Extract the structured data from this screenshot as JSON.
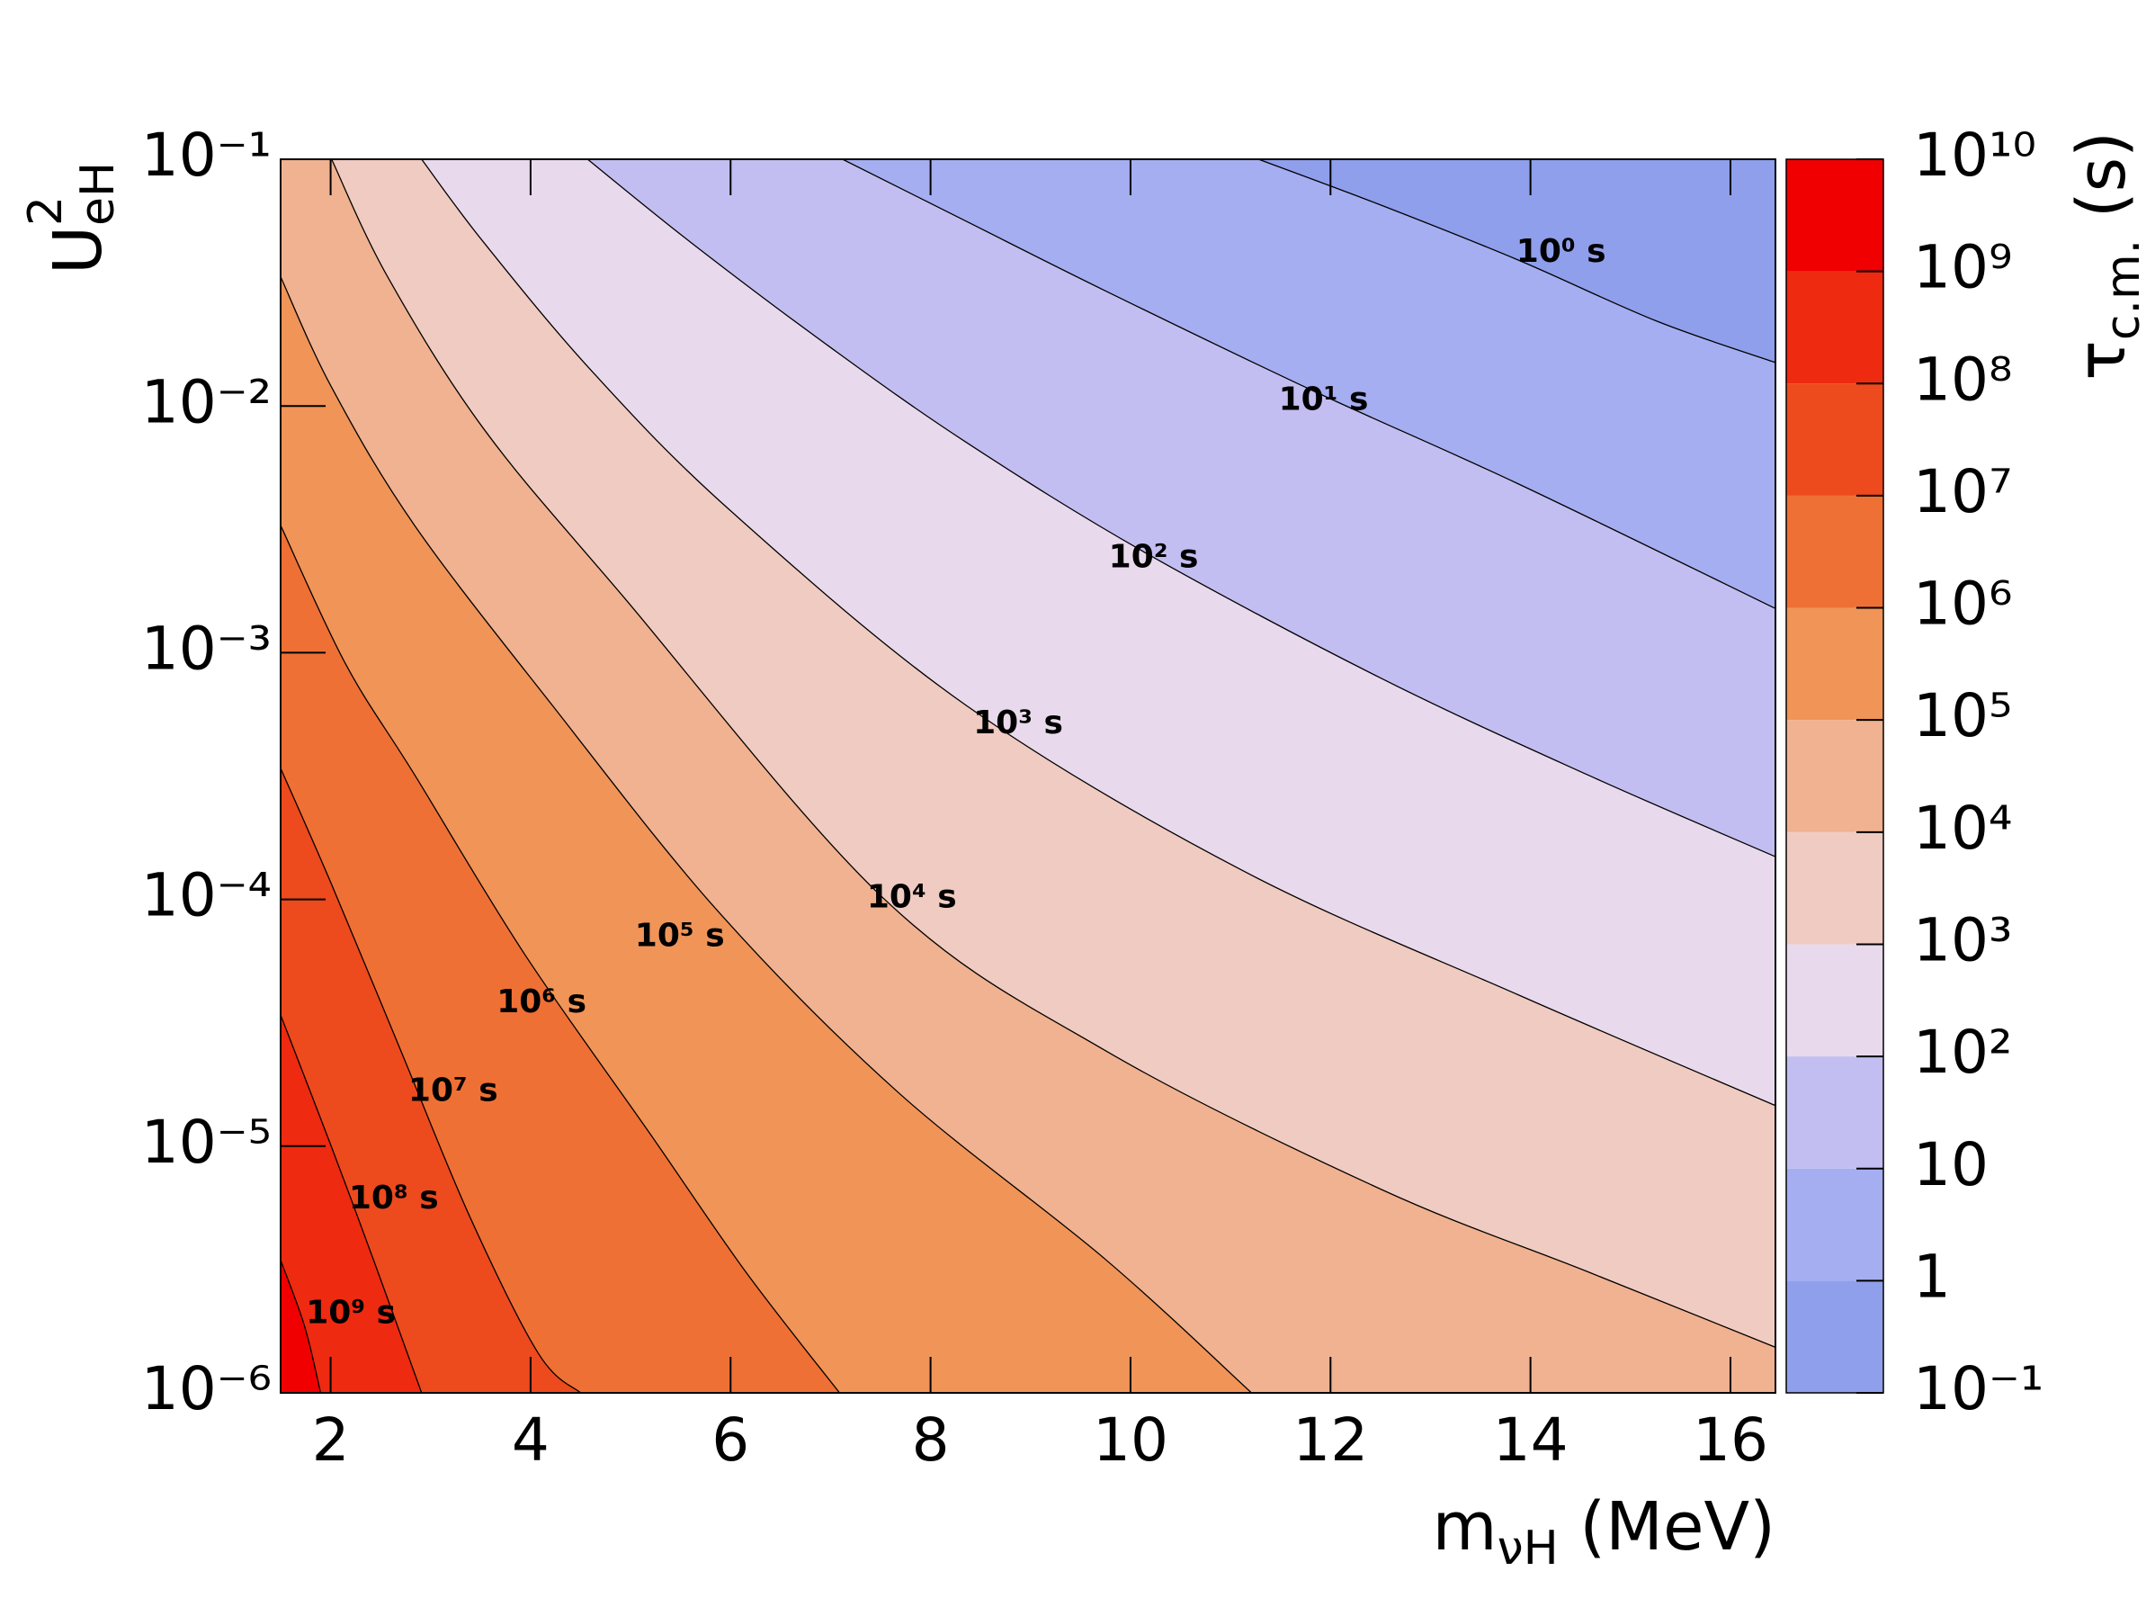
{
  "chart_data": {
    "type": "contour",
    "xlabel": {
      "main": "m",
      "sub": "νH",
      "rest": " (MeV)"
    },
    "ylabel": {
      "main": "U",
      "sup": "2",
      "sub": "eH"
    },
    "zlabel": {
      "main": "τ",
      "sub": "c.m.",
      "rest": " (s)"
    },
    "xlim": [
      1.5,
      16.45
    ],
    "xticks": [
      2,
      4,
      6,
      8,
      10,
      12,
      14,
      16
    ],
    "ylim": [
      1e-06,
      0.1
    ],
    "ylog": true,
    "yticks": [
      {
        "value": 1e-06,
        "label": "10⁻⁶"
      },
      {
        "value": 1e-05,
        "label": "10⁻⁵"
      },
      {
        "value": 0.0001,
        "label": "10⁻⁴"
      },
      {
        "value": 0.001,
        "label": "10⁻³"
      },
      {
        "value": 0.01,
        "label": "10⁻²"
      },
      {
        "value": 0.1,
        "label": "10⁻¹"
      }
    ],
    "zlim": [
      0.1,
      10000000000
    ],
    "zlog": true,
    "zticks": [
      {
        "value": 0.1,
        "label": "10⁻¹"
      },
      1,
      10,
      {
        "value": 100,
        "label": "10²"
      },
      {
        "value": 1000,
        "label": "10³"
      },
      {
        "value": 10000,
        "label": "10⁴"
      },
      {
        "value": 100000,
        "label": "10⁵"
      },
      {
        "value": 1000000,
        "label": "10⁶"
      },
      {
        "value": 10000000,
        "label": "10⁷"
      },
      {
        "value": 100000000,
        "label": "10⁸"
      },
      {
        "value": 1000000000,
        "label": "10⁹"
      },
      {
        "value": 10000000000,
        "label": "10¹⁰"
      }
    ],
    "colors": [
      "#8f9fec",
      "#a5aef1",
      "#c3bef1",
      "#e8daec",
      "#f0cbc1",
      "#f0b290",
      "#f09458",
      "#ef7034",
      "#ed4a1e",
      "#ee2a10",
      "#f00000"
    ],
    "line_color": "#000000",
    "contours": [
      {
        "name": "10⁰ s",
        "level": 1,
        "x": [
          11.28,
          12.5,
          13.88,
          15.26,
          16.45
        ],
        "y": [
          0.1,
          0.0653,
          0.039,
          0.0221,
          0.015
        ]
      },
      {
        "name": "10¹ s",
        "level": 10,
        "x": [
          7.12,
          8.36,
          9.74,
          11.81,
          13.88,
          16.45
        ],
        "y": [
          0.1,
          0.056,
          0.0294,
          0.0116,
          0.00483,
          0.00151
        ]
      },
      {
        "name": "10² s",
        "level": 100,
        "x": [
          4.57,
          5.6,
          6.98,
          8.36,
          10.15,
          12.5,
          14.57,
          16.45
        ],
        "y": [
          0.1,
          0.0461,
          0.0175,
          0.00711,
          0.00254,
          0.00079,
          0.00032,
          0.000149
        ]
      },
      {
        "name": "10³ s",
        "level": 1000,
        "x": [
          2.91,
          3.53,
          4.63,
          6.01,
          8.36,
          11.12,
          13.88,
          16.45
        ],
        "y": [
          0.1,
          0.0461,
          0.0136,
          0.00373,
          0.00061,
          0.000131,
          4.1e-05,
          1.46e-05
        ]
      },
      {
        "name": "10⁴ s",
        "level": 10000,
        "x": [
          2.01,
          2.57,
          3.53,
          4.91,
          7.53,
          9.74,
          12.5,
          14.57,
          16.45
        ],
        "y": [
          0.1,
          0.0334,
          0.00809,
          0.00172,
          0.000101,
          2.45e-05,
          6.7e-06,
          3.1e-06,
          1.53e-06
        ]
      },
      {
        "name": "10⁵ s",
        "level": 100000,
        "x": [
          1.5,
          2.01,
          2.84,
          4.22,
          5.88,
          7.67,
          9.74,
          11.21
        ],
        "y": [
          0.0334,
          0.0119,
          0.00328,
          0.00061,
          8.9e-05,
          1.66e-05,
          3.5e-06,
          1e-06
        ]
      },
      {
        "name": "10⁶ s",
        "level": 1000000,
        "x": [
          1.5,
          2.15,
          2.84,
          3.94,
          5.19,
          6.15,
          7.09
        ],
        "y": [
          0.00328,
          0.0009,
          0.00032,
          6e-05,
          1.13e-05,
          3.1e-06,
          1e-06
        ]
      },
      {
        "name": "10⁷ s",
        "level": 10000000,
        "x": [
          1.5,
          2.01,
          2.7,
          3.39,
          4.08,
          4.5
        ],
        "y": [
          0.00034,
          0.000115,
          2.45e-05,
          5.2e-06,
          1.44e-06,
          1e-06
        ]
      },
      {
        "name": "10⁸ s",
        "level": 100000000,
        "x": [
          1.5,
          2.01,
          2.43,
          2.91
        ],
        "y": [
          3.4e-05,
          9.9e-06,
          3.45e-06,
          1e-06
        ]
      },
      {
        "name": "10⁹ s",
        "level": 1000000000,
        "x": [
          1.5,
          1.74,
          1.9
        ],
        "y": [
          3.45e-06,
          1.86e-06,
          1e-06
        ]
      }
    ]
  }
}
